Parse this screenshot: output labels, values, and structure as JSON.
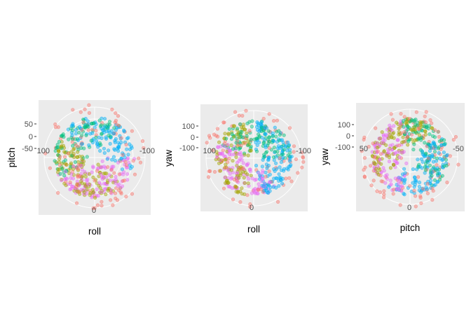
{
  "chart_data": [
    {
      "type": "scatter",
      "coord": "polar",
      "xlabel": "roll",
      "ylabel": "pitch",
      "theta_ticks": [
        "100",
        "-100",
        "0"
      ],
      "radial_ticks": [
        "50",
        "0",
        "-50"
      ],
      "grid": true,
      "colors": [
        "#F8766D",
        "#A3A500",
        "#00BF7D",
        "#00B0F6",
        "#E76BF3"
      ]
    },
    {
      "type": "scatter",
      "coord": "polar",
      "xlabel": "roll",
      "ylabel": "yaw",
      "theta_ticks": [
        "100",
        "-100",
        "0"
      ],
      "radial_ticks": [
        "100",
        "0",
        "-100"
      ],
      "grid": true,
      "colors": [
        "#F8766D",
        "#A3A500",
        "#00BF7D",
        "#00B0F6",
        "#E76BF3"
      ]
    },
    {
      "type": "scatter",
      "coord": "polar",
      "xlabel": "pitch",
      "ylabel": "yaw",
      "theta_ticks": [
        "50",
        "-50",
        "0"
      ],
      "radial_ticks": [
        "100",
        "0",
        "-100"
      ],
      "grid": true,
      "colors": [
        "#F8766D",
        "#A3A500",
        "#00BF7D",
        "#00B0F6",
        "#E76BF3"
      ]
    }
  ]
}
